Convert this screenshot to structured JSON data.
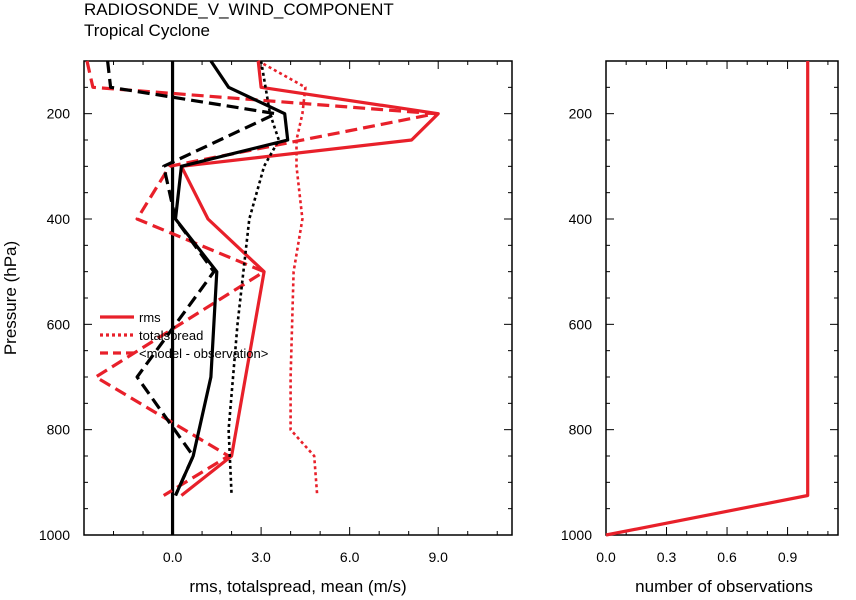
{
  "title": "RADIOSONDE_V_WIND_COMPONENT",
  "subtitle": "Tropical Cyclone",
  "chart_data": [
    {
      "type": "line",
      "xlabel": "rms, totalspread, mean (m/s)",
      "ylabel": "Pressure (hPa)",
      "xlim": [
        -3,
        11.5
      ],
      "ylim": [
        1000,
        100
      ],
      "xticks": [
        0,
        3,
        6,
        9
      ],
      "xtick_labels": [
        "0.0",
        "3.0",
        "6.0",
        "9.0"
      ],
      "yticks": [
        200,
        400,
        600,
        800,
        1000
      ],
      "ytick_labels": [
        "200",
        "400",
        "600",
        "800",
        "1000"
      ],
      "legend": {
        "placement": "left-middle",
        "entries": [
          "rms",
          "totalspread",
          "<model - observation>"
        ]
      },
      "series": [
        {
          "name": "rms",
          "color": "#e8202a",
          "style": "solid",
          "width": 3.2,
          "points": [
            [
              2.9,
              100
            ],
            [
              3.0,
              150
            ],
            [
              9.0,
              200
            ],
            [
              8.1,
              250
            ],
            [
              0.3,
              300
            ],
            [
              1.2,
              400
            ],
            [
              3.1,
              500
            ],
            [
              2.0,
              850
            ],
            [
              0.3,
              925
            ]
          ]
        },
        {
          "name": "totalspread",
          "color": "#e8202a",
          "style": "dotted",
          "width": 2.6,
          "points": [
            [
              2.9,
              100
            ],
            [
              4.5,
              150
            ],
            [
              4.4,
              200
            ],
            [
              4.2,
              250
            ],
            [
              4.2,
              300
            ],
            [
              4.4,
              400
            ],
            [
              4.1,
              500
            ],
            [
              4.0,
              700
            ],
            [
              4.0,
              800
            ],
            [
              4.8,
              850
            ],
            [
              4.9,
              925
            ]
          ]
        },
        {
          "name": "<model - observation>",
          "color": "#e8202a",
          "style": "dashed",
          "width": 3.2,
          "points": [
            [
              -2.9,
              100
            ],
            [
              -2.7,
              150
            ],
            [
              8.9,
              200
            ],
            [
              -0.1,
              300
            ],
            [
              -1.2,
              400
            ],
            [
              3.1,
              500
            ],
            [
              -2.6,
              700
            ],
            [
              1.9,
              850
            ],
            [
              -0.3,
              925
            ]
          ]
        },
        {
          "name": "rms (black)",
          "color": "#000000",
          "style": "solid",
          "width": 3.2,
          "points": [
            [
              1.3,
              100
            ],
            [
              1.9,
              150
            ],
            [
              3.8,
              200
            ],
            [
              3.9,
              250
            ],
            [
              0.3,
              300
            ],
            [
              0.1,
              400
            ],
            [
              1.5,
              500
            ],
            [
              1.3,
              700
            ],
            [
              0.7,
              850
            ],
            [
              0.1,
              925
            ]
          ]
        },
        {
          "name": "totalspread (black)",
          "color": "#000000",
          "style": "dotted",
          "width": 2.6,
          "points": [
            [
              3.0,
              100
            ],
            [
              3.3,
              200
            ],
            [
              3.6,
              250
            ],
            [
              3.1,
              300
            ],
            [
              2.6,
              400
            ],
            [
              2.2,
              600
            ],
            [
              1.9,
              800
            ],
            [
              2.0,
              925
            ]
          ]
        },
        {
          "name": "<model - observation> (black)",
          "color": "#000000",
          "style": "dashed",
          "width": 3.2,
          "points": [
            [
              -2.2,
              100
            ],
            [
              -2.1,
              150
            ],
            [
              3.5,
              200
            ],
            [
              -0.3,
              300
            ],
            [
              0.1,
              400
            ],
            [
              1.4,
              500
            ],
            [
              -1.2,
              700
            ],
            [
              0.7,
              850
            ],
            [
              0.1,
              925
            ]
          ]
        }
      ]
    },
    {
      "type": "line",
      "xlabel": "number of observations",
      "ylabel": "",
      "xlim": [
        0,
        1.15
      ],
      "ylim": [
        1000,
        100
      ],
      "xticks": [
        0,
        0.3,
        0.6,
        0.9
      ],
      "xtick_labels": [
        "0.0",
        "0.3",
        "0.6",
        "0.9"
      ],
      "yticks": [
        200,
        400,
        600,
        800,
        1000
      ],
      "ytick_labels": [
        "200",
        "400",
        "600",
        "800",
        "1000"
      ],
      "series": [
        {
          "name": "observations",
          "color": "#e8202a",
          "style": "solid",
          "width": 3.2,
          "points": [
            [
              1.0,
              100
            ],
            [
              1.0,
              925
            ],
            [
              0.0,
              1000
            ]
          ]
        }
      ]
    }
  ]
}
